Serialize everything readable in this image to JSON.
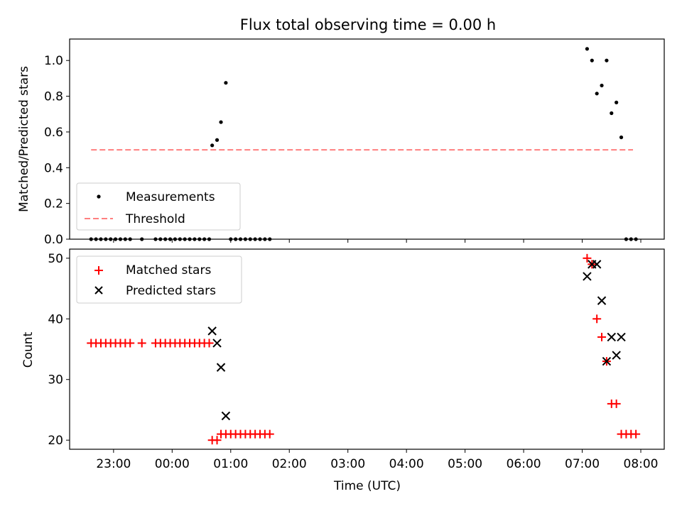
{
  "chart_data": [
    {
      "type": "scatter",
      "title": "Flux total observing time = 0.00 h",
      "xlabel": "",
      "ylabel": "Matched/Predicted stars",
      "xlim": [
        "22:15",
        "08:24"
      ],
      "ylim": [
        0,
        1.12
      ],
      "yticks": [
        "0.0",
        "0.2",
        "0.4",
        "0.6",
        "0.8",
        "1.0"
      ],
      "legend": {
        "placement": "lower-left",
        "entries": [
          {
            "label": "Measurements",
            "marker": "dot",
            "color": "#000000"
          },
          {
            "label": "Threshold",
            "marker": "dashed-line",
            "color": "#ff7f7f"
          }
        ]
      },
      "threshold": {
        "name": "Threshold",
        "value": 0.5,
        "x_start": "22:37",
        "x_end": "07:52",
        "color": "#ff7f7f"
      },
      "series": [
        {
          "name": "Measurements",
          "color": "#000000",
          "points": [
            [
              "22:37",
              0
            ],
            [
              "22:42",
              0
            ],
            [
              "22:47",
              0
            ],
            [
              "22:52",
              0
            ],
            [
              "22:57",
              0
            ],
            [
              "23:02",
              0
            ],
            [
              "23:07",
              0
            ],
            [
              "23:12",
              0
            ],
            [
              "23:17",
              0
            ],
            [
              "23:29",
              0
            ],
            [
              "23:43",
              0
            ],
            [
              "23:48",
              0
            ],
            [
              "23:53",
              0
            ],
            [
              "23:58",
              0
            ],
            [
              "00:03",
              0
            ],
            [
              "00:08",
              0
            ],
            [
              "00:13",
              0
            ],
            [
              "00:18",
              0
            ],
            [
              "00:23",
              0
            ],
            [
              "00:28",
              0
            ],
            [
              "00:33",
              0
            ],
            [
              "00:38",
              0
            ],
            [
              "00:41",
              0.525
            ],
            [
              "00:46",
              0.555
            ],
            [
              "00:50",
              0.655
            ],
            [
              "00:55",
              0.875
            ],
            [
              "01:00",
              0
            ],
            [
              "01:05",
              0
            ],
            [
              "01:10",
              0
            ],
            [
              "01:15",
              0
            ],
            [
              "01:20",
              0
            ],
            [
              "01:25",
              0
            ],
            [
              "01:30",
              0
            ],
            [
              "01:35",
              0
            ],
            [
              "01:40",
              0
            ],
            [
              "07:05",
              1.065
            ],
            [
              "07:10",
              1.0
            ],
            [
              "07:15",
              0.815
            ],
            [
              "07:20",
              0.86
            ],
            [
              "07:25",
              1.0
            ],
            [
              "07:30",
              0.705
            ],
            [
              "07:35",
              0.765
            ],
            [
              "07:40",
              0.57
            ],
            [
              "07:45",
              0
            ],
            [
              "07:50",
              0
            ],
            [
              "07:55",
              0
            ]
          ]
        }
      ]
    },
    {
      "type": "scatter",
      "title": "",
      "xlabel": "Time (UTC)",
      "ylabel": "Count",
      "xlim": [
        "22:15",
        "08:24"
      ],
      "ylim": [
        18.5,
        51.5
      ],
      "yticks": [
        "20",
        "30",
        "40",
        "50"
      ],
      "xticks": [
        "23:00",
        "00:00",
        "01:00",
        "02:00",
        "03:00",
        "04:00",
        "05:00",
        "06:00",
        "07:00",
        "08:00"
      ],
      "legend": {
        "placement": "upper-left",
        "entries": [
          {
            "label": "Matched stars",
            "marker": "plus",
            "color": "#ff0000"
          },
          {
            "label": "Predicted stars",
            "marker": "x",
            "color": "#000000"
          }
        ]
      },
      "series": [
        {
          "name": "Matched stars",
          "color": "#ff0000",
          "marker": "plus",
          "points": [
            [
              "22:37",
              36
            ],
            [
              "22:42",
              36
            ],
            [
              "22:47",
              36
            ],
            [
              "22:52",
              36
            ],
            [
              "22:57",
              36
            ],
            [
              "23:02",
              36
            ],
            [
              "23:07",
              36
            ],
            [
              "23:12",
              36
            ],
            [
              "23:17",
              36
            ],
            [
              "23:29",
              36
            ],
            [
              "23:43",
              36
            ],
            [
              "23:48",
              36
            ],
            [
              "23:53",
              36
            ],
            [
              "23:58",
              36
            ],
            [
              "00:03",
              36
            ],
            [
              "00:08",
              36
            ],
            [
              "00:13",
              36
            ],
            [
              "00:18",
              36
            ],
            [
              "00:23",
              36
            ],
            [
              "00:28",
              36
            ],
            [
              "00:33",
              36
            ],
            [
              "00:38",
              36
            ],
            [
              "00:41",
              20
            ],
            [
              "00:46",
              20
            ],
            [
              "00:50",
              21
            ],
            [
              "00:55",
              21
            ],
            [
              "01:00",
              21
            ],
            [
              "01:05",
              21
            ],
            [
              "01:10",
              21
            ],
            [
              "01:15",
              21
            ],
            [
              "01:20",
              21
            ],
            [
              "01:25",
              21
            ],
            [
              "01:30",
              21
            ],
            [
              "01:35",
              21
            ],
            [
              "01:40",
              21
            ],
            [
              "07:05",
              50
            ],
            [
              "07:10",
              49
            ],
            [
              "07:15",
              40
            ],
            [
              "07:20",
              37
            ],
            [
              "07:25",
              33
            ],
            [
              "07:30",
              26
            ],
            [
              "07:35",
              26
            ],
            [
              "07:40",
              21
            ],
            [
              "07:45",
              21
            ],
            [
              "07:50",
              21
            ],
            [
              "07:55",
              21
            ]
          ]
        },
        {
          "name": "Predicted stars",
          "color": "#000000",
          "marker": "x",
          "points": [
            [
              "00:41",
              38
            ],
            [
              "00:46",
              36
            ],
            [
              "00:50",
              32
            ],
            [
              "00:55",
              24
            ],
            [
              "07:05",
              47
            ],
            [
              "07:10",
              49
            ],
            [
              "07:15",
              49
            ],
            [
              "07:20",
              43
            ],
            [
              "07:25",
              33
            ],
            [
              "07:30",
              37
            ],
            [
              "07:35",
              34
            ],
            [
              "07:40",
              37
            ]
          ]
        }
      ]
    }
  ]
}
